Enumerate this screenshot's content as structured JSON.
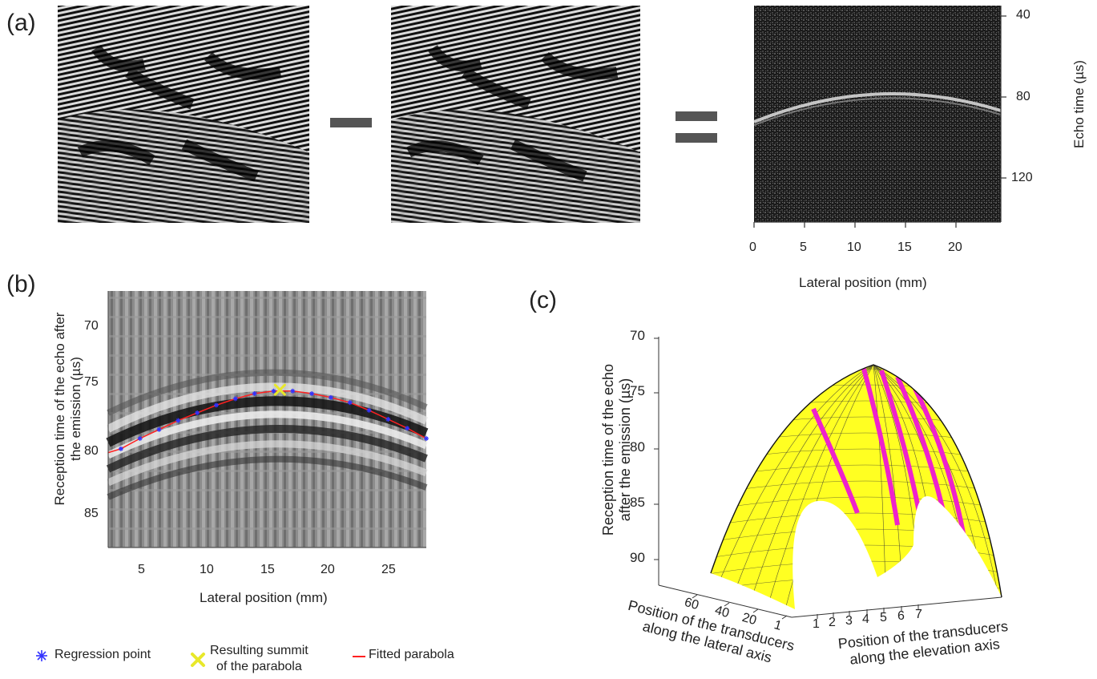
{
  "panel_a": {
    "label": "(a)",
    "y_title": "Echo time (µs)",
    "x_title": "Lateral position (mm)",
    "y_ticks": [
      "40",
      "80",
      "120"
    ],
    "x_ticks": [
      "0",
      "5",
      "10",
      "15",
      "20"
    ],
    "operator_minus": "minus-sign",
    "operator_equals": "equals-sign"
  },
  "panel_b": {
    "label": "(b)",
    "y_title_line1": "Reception time of the echo after",
    "y_title_line2": "the emission (µs)",
    "x_title": "Lateral position (mm)",
    "y_ticks": [
      "70",
      "75",
      "80",
      "85"
    ],
    "x_ticks": [
      "5",
      "10",
      "15",
      "20",
      "25"
    ],
    "legend": {
      "regression": "Regression point",
      "summit_line1": "Resulting summit",
      "summit_line2": "of the parabola",
      "fitted": "Fitted parabola"
    },
    "colors": {
      "regression": "#3333ff",
      "summit": "#e8e82a",
      "fitted": "#ff2020"
    }
  },
  "panel_c": {
    "label": "(c)",
    "z_title_line1": "Reception time of the echo",
    "z_title_line2": "after the emission (µs)",
    "z_ticks": [
      "70",
      "75",
      "80",
      "85",
      "90"
    ],
    "lateral_ticks": [
      "60",
      "40",
      "20",
      "1"
    ],
    "lateral_title_line1": "Position of the transducers",
    "lateral_title_line2": "along the lateral axis",
    "elevation_ticks": [
      "1",
      "2",
      "3",
      "4",
      "5",
      "6",
      "7"
    ],
    "elevation_title_line1": "Position of the transducers",
    "elevation_title_line2": "along the elevation axis",
    "colors": {
      "surface": "#ffff22",
      "highlight": "#ee22cc",
      "mesh": "#333333"
    }
  },
  "chart_data": [
    {
      "type": "scatter",
      "title": "",
      "xlabel": "Lateral position (mm)",
      "ylabel": "Reception time of the echo after the emission (µs)",
      "xlim": [
        2.5,
        27.5
      ],
      "ylim": [
        87.5,
        67.5
      ],
      "series": [
        {
          "name": "Regression point",
          "x": [
            3.5,
            5,
            6.5,
            8,
            9.5,
            11,
            12.5,
            14,
            15.5,
            17,
            18.5,
            20,
            21.5,
            23,
            24.5,
            26,
            27.5
          ],
          "y": [
            79.8,
            79.0,
            78.3,
            77.6,
            77.0,
            76.4,
            75.9,
            75.5,
            75.3,
            75.3,
            75.5,
            75.8,
            76.2,
            76.8,
            77.5,
            78.2,
            79.0
          ]
        },
        {
          "name": "Resulting summit of the parabola",
          "x": [
            16
          ],
          "y": [
            75.2
          ]
        },
        {
          "name": "Fitted parabola",
          "x": [
            2.5,
            27.5
          ],
          "y": [
            80.0,
            79.0
          ]
        }
      ]
    }
  ]
}
